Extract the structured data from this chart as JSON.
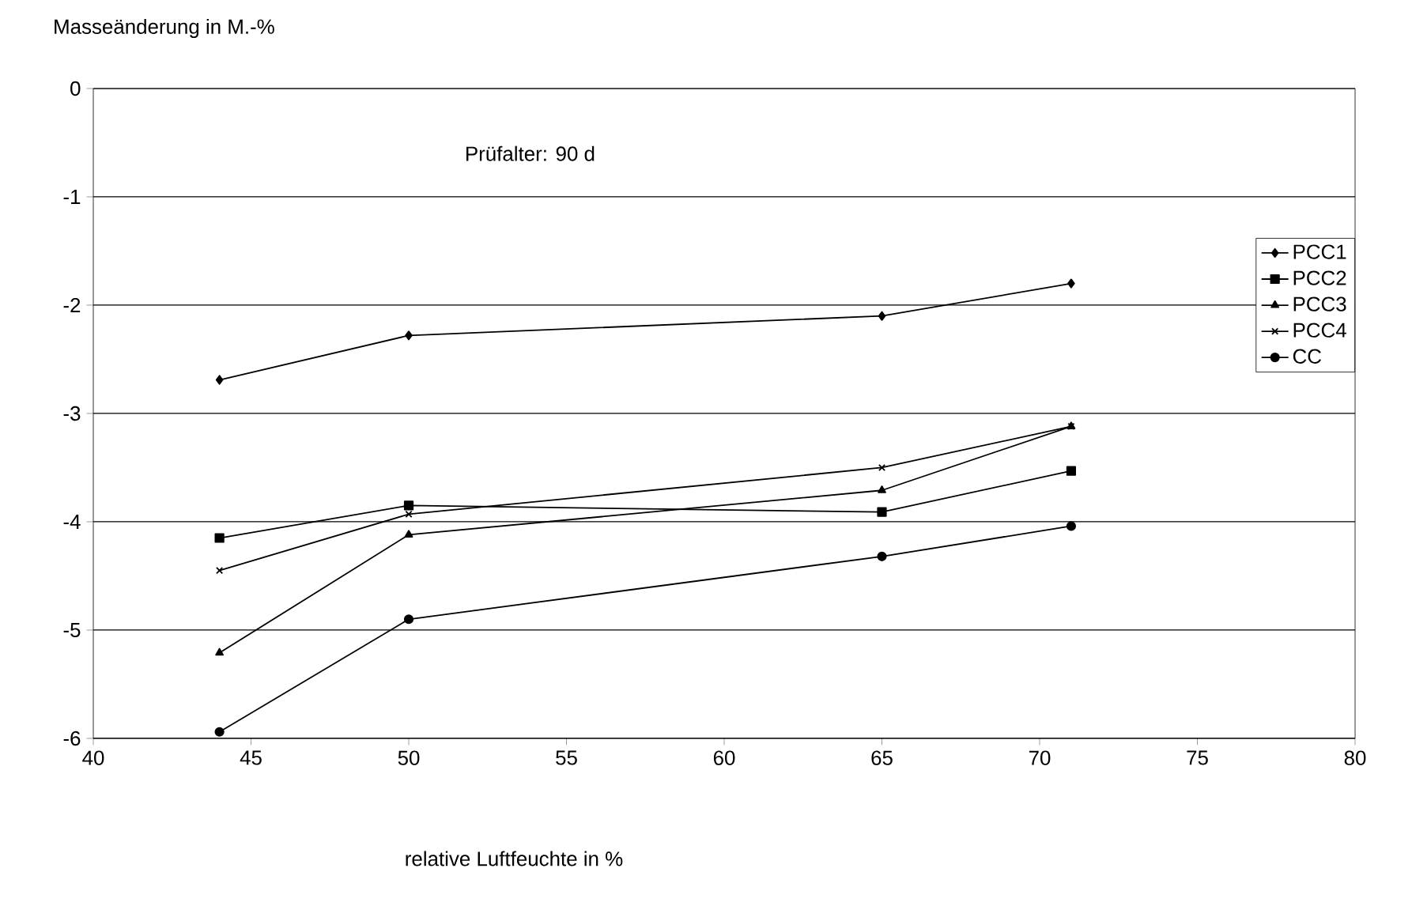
{
  "chart_data": {
    "type": "line",
    "xlabel": "relative Luftfeuchte in %",
    "ylabel": "Masseänderung in M.-%",
    "annotations": [
      "Prüfalter: 90 d"
    ],
    "x": [
      44,
      50,
      65,
      71
    ],
    "series": [
      {
        "name": "PCC1",
        "color": "#000000",
        "marker": "diamond",
        "values": [
          -2.69,
          -2.28,
          -2.1,
          -1.8
        ]
      },
      {
        "name": "PCC2",
        "color": "#000000",
        "marker": "square",
        "values": [
          -4.15,
          -3.85,
          -3.91,
          -3.53
        ]
      },
      {
        "name": "PCC3",
        "color": "#000000",
        "marker": "triangle",
        "values": [
          -5.21,
          -4.12,
          -3.71,
          -3.12
        ]
      },
      {
        "name": "PCC4",
        "color": "#000000",
        "marker": "cross",
        "values": [
          -4.45,
          -3.93,
          -3.5,
          -3.12
        ]
      },
      {
        "name": "CC",
        "color": "#000000",
        "marker": "circle",
        "values": [
          -5.94,
          -4.9,
          -4.32,
          -4.04
        ]
      }
    ],
    "xlim": [
      40,
      80
    ],
    "xticks": [
      40,
      45,
      50,
      55,
      60,
      65,
      70,
      75,
      80
    ],
    "ylim": [
      -6,
      0
    ],
    "yticks": [
      0,
      -1,
      -2,
      -3,
      -4,
      -5,
      -6
    ],
    "grid": "y",
    "legend": "right",
    "line_style": "solid"
  }
}
